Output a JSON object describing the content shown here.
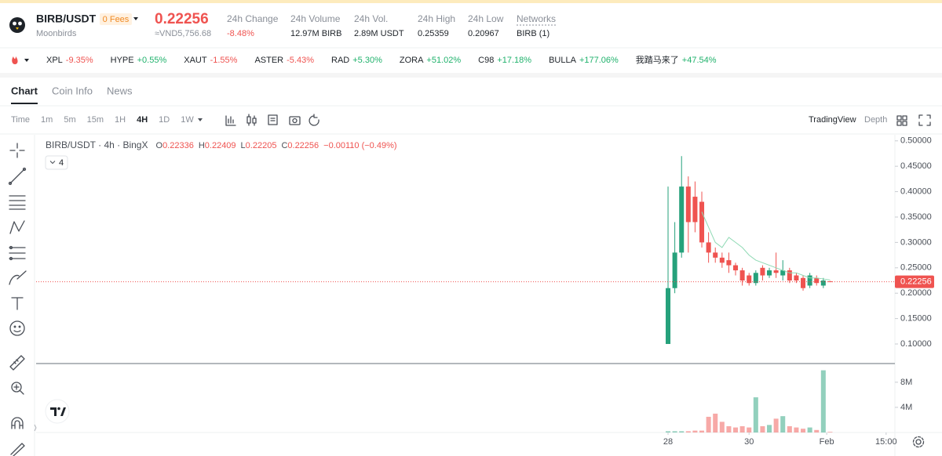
{
  "header": {
    "symbol": "BIRB/USDT",
    "fees": "0 Fees",
    "name": "Moonbirds",
    "price": "0.22256",
    "fiat": "≈VND5,756.68",
    "stats": [
      {
        "label": "24h Change",
        "value": "-8.48%"
      },
      {
        "label": "24h Volume",
        "value": "12.97M BIRB"
      },
      {
        "label": "24h Vol.",
        "value": "2.89M USDT"
      },
      {
        "label": "24h High",
        "value": "0.25359"
      },
      {
        "label": "24h Low",
        "value": "0.20967"
      },
      {
        "label": "Networks",
        "value": "BIRB (1)"
      }
    ]
  },
  "tickers": [
    {
      "name": "XPL",
      "change": "-9.35%"
    },
    {
      "name": "HYPE",
      "change": "+0.55%"
    },
    {
      "name": "XAUT",
      "change": "-1.55%"
    },
    {
      "name": "ASTER",
      "change": "-5.43%"
    },
    {
      "name": "RAD",
      "change": "+5.30%"
    },
    {
      "name": "ZORA",
      "change": "+51.02%"
    },
    {
      "name": "C98",
      "change": "+17.18%"
    },
    {
      "name": "BULLA",
      "change": "+177.06%"
    },
    {
      "name": "我踏马来了",
      "change": "+47.54%"
    }
  ],
  "tabs": [
    "Chart",
    "Coin Info",
    "News"
  ],
  "intervals": [
    "Time",
    "1m",
    "5m",
    "15m",
    "1H",
    "4H",
    "1D",
    "1W"
  ],
  "views": [
    "TradingView",
    "Depth"
  ],
  "chart_data": {
    "type": "candlestick",
    "title": "BIRB/USDT · 4h · BingX",
    "legend": [
      {
        "key": "O",
        "value": "0.22336"
      },
      {
        "key": "H",
        "value": "0.22409"
      },
      {
        "key": "L",
        "value": "0.22205"
      },
      {
        "key": "C",
        "value": "0.22256"
      }
    ],
    "change": "−0.00110 (−0.49%)",
    "indicators": "4",
    "x": [
      0,
      1,
      2,
      3,
      4,
      5,
      6,
      7,
      8,
      9,
      10,
      11,
      12,
      13,
      14,
      15,
      16,
      17,
      18,
      19,
      20,
      21,
      22,
      23,
      24
    ],
    "open": [
      0.1,
      0.21,
      0.28,
      0.41,
      0.39,
      0.38,
      0.3,
      0.28,
      0.27,
      0.265,
      0.255,
      0.245,
      0.235,
      0.22,
      0.25,
      0.235,
      0.245,
      0.235,
      0.245,
      0.235,
      0.23,
      0.215,
      0.23,
      0.215,
      0.22336
    ],
    "high": [
      0.41,
      0.34,
      0.47,
      0.43,
      0.42,
      0.4,
      0.32,
      0.29,
      0.28,
      0.28,
      0.26,
      0.25,
      0.24,
      0.245,
      0.255,
      0.25,
      0.28,
      0.265,
      0.25,
      0.24,
      0.235,
      0.24,
      0.235,
      0.23,
      0.22409
    ],
    "low": [
      0.1,
      0.2,
      0.27,
      0.28,
      0.32,
      0.29,
      0.26,
      0.26,
      0.25,
      0.24,
      0.235,
      0.215,
      0.215,
      0.215,
      0.225,
      0.23,
      0.23,
      0.225,
      0.22,
      0.22,
      0.205,
      0.21,
      0.215,
      0.21,
      0.22205
    ],
    "close": [
      0.21,
      0.28,
      0.41,
      0.34,
      0.34,
      0.3,
      0.28,
      0.27,
      0.26,
      0.255,
      0.245,
      0.225,
      0.22,
      0.24,
      0.235,
      0.245,
      0.24,
      0.245,
      0.225,
      0.225,
      0.21,
      0.235,
      0.22,
      0.225,
      0.22256
    ],
    "ma": [
      null,
      null,
      null,
      null,
      null,
      0.36,
      0.33,
      0.3,
      0.29,
      0.31,
      0.3,
      0.29,
      0.275,
      0.265,
      0.26,
      0.255,
      0.25,
      0.245,
      0.24,
      0.24,
      0.235,
      0.23,
      0.23,
      0.228,
      0.226
    ],
    "volume": [
      200000,
      200000,
      200000,
      200000,
      300000,
      300000,
      2500000,
      3000000,
      1700000,
      1000000,
      800000,
      1000000,
      800000,
      5600000,
      1000000,
      1200000,
      2200000,
      2600000,
      1000000,
      800000,
      600000,
      800000,
      400000,
      9900000,
      100000
    ],
    "last": 0.22256,
    "xlim": [
      -93.6,
      33.6
    ],
    "ylim": [
      0.063,
      0.512
    ],
    "yticks": [
      {
        "value": 0.1,
        "label": "0.10000"
      },
      {
        "value": 0.15,
        "label": "0.15000"
      },
      {
        "value": 0.2,
        "label": "0.20000"
      },
      {
        "value": 0.25,
        "label": "0.25000"
      },
      {
        "value": 0.3,
        "label": "0.30000"
      },
      {
        "value": 0.35,
        "label": "0.35000"
      },
      {
        "value": 0.4,
        "label": "0.40000"
      },
      {
        "value": 0.45,
        "label": "0.45000"
      },
      {
        "value": 0.5,
        "label": "0.50000"
      }
    ],
    "xticks": [
      {
        "value": 0,
        "label": "28"
      },
      {
        "value": 12,
        "label": "30"
      },
      {
        "value": 23.5,
        "label": "Feb"
      },
      {
        "value": 32.3,
        "label": "15:00"
      }
    ],
    "volume_ylim": [
      0,
      10600000
    ],
    "volume_yticks": [
      {
        "value": 4000000,
        "label": "4M"
      },
      {
        "value": 8000000,
        "label": "8M"
      }
    ],
    "up_color": "#26a17b",
    "down_color": "#ef5350",
    "ma_color": "#8fd9b4",
    "grid": false
  }
}
